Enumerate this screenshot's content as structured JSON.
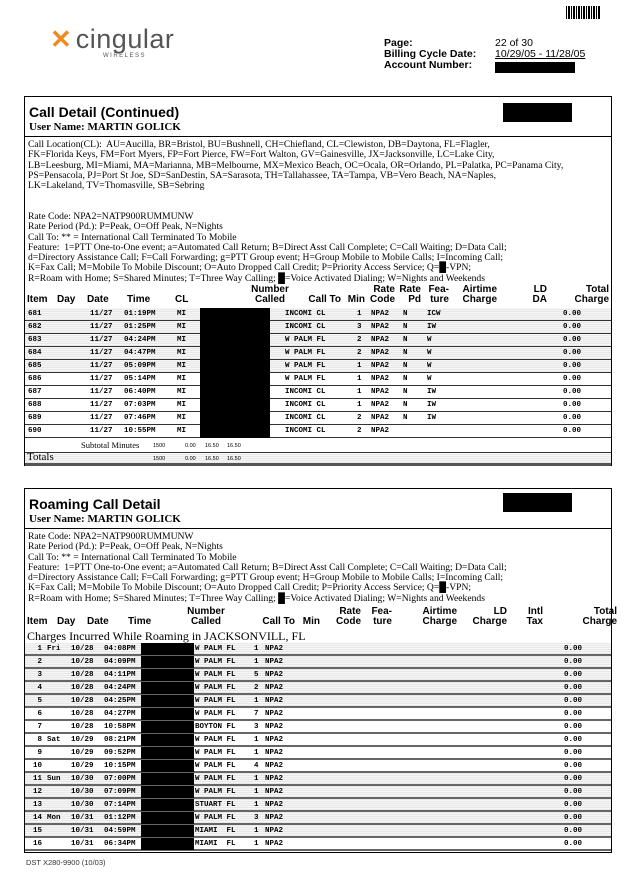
{
  "header": {
    "logo_text": "cingular",
    "logo_sub": "WIRELESS",
    "page_label": "Page:",
    "page_value": "22 of 30",
    "billing_label": "Billing Cycle Date:",
    "billing_value": "10/29/05 - 11/28/05",
    "account_label": "Account Number:"
  },
  "call_detail": {
    "title": "Call Detail (Continued)",
    "user": "User Name: MARTIN GOLICK",
    "legend_locations": "Call Location(CL):  AU=Aucilla, BR=Bristol, BU=Bushnell, CH=Chiefland, CL=Clewiston, DB=Daytona, FL=Flagler,\nFK=Florida Keys, FM=Fort Myers, FP=Fort Pierce, FW=Fort Walton, GV=Gainesville, JX=Jacksonville, LC=Lake City,\nLB=Leesburg, MI=Miami, MA=Marianna, MB=Melbourne, MX=Mexico Beach, OC=Ocala, OR=Orlando, PL=Palatka, PC=Panama City,\nPS=Pensacola, PJ=Port St Joe, SD=SanDestin, SA=Sarasota, TH=Tallahassee, TA=Tampa, VB=Vero Beach, NA=Naples,\nLK=Lakeland, TV=Thomasville, SB=Sebring",
    "legend_codes": "Rate Code: NPA2=NATP900RUMMUNW\nRate Period (Pd.): P=Peak, O=Off Peak, N=Nights\nCall To: ** = International Call Terminated To Mobile\nFeature:  1=PTT One-to-One event; a=Automated Call Return; B=Direct Asst Call Complete; C=Call Waiting; D=Data Call;\nd=Directory Assistance Call; F=Call Forwarding; g=PTT Group event; H=Group Mobile to Mobile Calls; I=Incoming Call;\nK=Fax Call; M=Mobile To Mobile Discount; O=Auto Dropped Call Credit; P=Priority Access Service; Q=█-VPN;\nR=Roam with Home; S=Shared Minutes; T=Three Way Calling; █=Voice Activated Dialing; W=Nights and Weekends",
    "columns": [
      "Item",
      "Day",
      "Date",
      "Time",
      "CL",
      "Number\nCalled",
      "Call To",
      "Min",
      "Rate\nCode",
      "Rate\nPd",
      "Fea-\nture",
      "Airtime\nCharge",
      "LD\nDA",
      "Total\nCharge"
    ],
    "rows": [
      {
        "item": "681",
        "date": "11/27",
        "time": "01:19PM",
        "cl": "MI",
        "call_to": "INCOMI CL",
        "min": "1",
        "rate_code": "NPA2",
        "pd": "N",
        "feature": "ICW",
        "total": "0.00"
      },
      {
        "item": "682",
        "date": "11/27",
        "time": "01:25PM",
        "cl": "MI",
        "call_to": "INCOMI CL",
        "min": "3",
        "rate_code": "NPA2",
        "pd": "N",
        "feature": "IW",
        "total": "0.00"
      },
      {
        "item": "683",
        "date": "11/27",
        "time": "04:24PM",
        "cl": "MI",
        "call_to": "W PALM FL",
        "min": "2",
        "rate_code": "NPA2",
        "pd": "N",
        "feature": "W",
        "total": "0.00"
      },
      {
        "item": "684",
        "date": "11/27",
        "time": "04:47PM",
        "cl": "MI",
        "call_to": "W PALM FL",
        "min": "2",
        "rate_code": "NPA2",
        "pd": "N",
        "feature": "W",
        "total": "0.00"
      },
      {
        "item": "685",
        "date": "11/27",
        "time": "05:09PM",
        "cl": "MI",
        "call_to": "W PALM FL",
        "min": "1",
        "rate_code": "NPA2",
        "pd": "N",
        "feature": "W",
        "total": "0.00"
      },
      {
        "item": "686",
        "date": "11/27",
        "time": "05:14PM",
        "cl": "MI",
        "call_to": "W PALM FL",
        "min": "1",
        "rate_code": "NPA2",
        "pd": "N",
        "feature": "W",
        "total": "0.00"
      },
      {
        "item": "687",
        "date": "11/27",
        "time": "06:40PM",
        "cl": "MI",
        "call_to": "INCOMI CL",
        "min": "1",
        "rate_code": "NPA2",
        "pd": "N",
        "feature": "IW",
        "total": "0.00"
      },
      {
        "item": "688",
        "date": "11/27",
        "time": "07:03PM",
        "cl": "MI",
        "call_to": "INCOMI CL",
        "min": "1",
        "rate_code": "NPA2",
        "pd": "N",
        "feature": "IW",
        "total": "0.00"
      },
      {
        "item": "689",
        "date": "11/27",
        "time": "07:46PM",
        "cl": "MI",
        "call_to": "INCOMI CL",
        "min": "2",
        "rate_code": "NPA2",
        "pd": "N",
        "feature": "IW",
        "total": "0.00"
      },
      {
        "item": "690",
        "date": "11/27",
        "time": "10:55PM",
        "cl": "MI",
        "call_to": "INCOMI CL",
        "min": "2",
        "rate_code": "NPA2",
        "pd": "",
        "feature": "",
        "total": "0.00"
      }
    ],
    "subtotal": {
      "label": "Subtotal Minutes",
      "minutes": "1500",
      "v1": "0.00",
      "v2": "16.50",
      "v3": "16.50"
    },
    "totals": {
      "label": "Totals",
      "minutes": "1500",
      "v1": "0.00",
      "v2": "16.50",
      "v3": "16.50"
    }
  },
  "roaming": {
    "title": "Roaming Call Detail",
    "user": "User Name: MARTIN GOLICK",
    "legend_codes": "Rate Code: NPA2=NATP900RUMMUNW\nRate Period (Pd.): P=Peak, O=Off Peak, N=Nights\nCall To: ** = International Call Terminated To Mobile\nFeature:  1=PTT One-to-One event; a=Automated Call Return; B=Direct Asst Call Complete; C=Call Waiting; D=Data Call;\nd=Directory Assistance Call; F=Call Forwarding; g=PTT Group event; H=Group Mobile to Mobile Calls; I=Incoming Call;\nK=Fax Call; M=Mobile To Mobile Discount; O=Auto Dropped Call Credit; P=Priority Access Service; Q=█-VPN;\nR=Roam with Home; S=Shared Minutes; T=Three Way Calling; █=Voice Activated Dialing; W=Nights and Weekends",
    "columns": [
      "Item",
      "Day",
      "Date",
      "Time",
      "Number\nCalled",
      "Call To",
      "Min",
      "Rate\nCode",
      "Fea-\nture",
      "Airtime\nCharge",
      "LD\nCharge",
      "Intl\nTax",
      "Total\nCharge"
    ],
    "section_label": "Charges Incurred While Roaming in JACKSONVILL, FL",
    "rows": [
      {
        "item": "1",
        "day": "Fri",
        "date": "10/28",
        "time": "04:08PM",
        "call_to": "W PALM FL",
        "min": "1",
        "rate_code": "NPA2",
        "total": "0.00"
      },
      {
        "item": "2",
        "day": "",
        "date": "10/28",
        "time": "04:09PM",
        "call_to": "W PALM FL",
        "min": "1",
        "rate_code": "NPA2",
        "total": "0.00"
      },
      {
        "item": "3",
        "day": "",
        "date": "10/28",
        "time": "04:11PM",
        "call_to": "W PALM FL",
        "min": "5",
        "rate_code": "NPA2",
        "total": "0.00"
      },
      {
        "item": "4",
        "day": "",
        "date": "10/28",
        "time": "04:24PM",
        "call_to": "W PALM FL",
        "min": "2",
        "rate_code": "NPA2",
        "total": "0.00"
      },
      {
        "item": "5",
        "day": "",
        "date": "10/28",
        "time": "04:25PM",
        "call_to": "W PALM FL",
        "min": "1",
        "rate_code": "NPA2",
        "total": "0.00"
      },
      {
        "item": "6",
        "day": "",
        "date": "10/28",
        "time": "04:27PM",
        "call_to": "W PALM FL",
        "min": "7",
        "rate_code": "NPA2",
        "total": "0.00"
      },
      {
        "item": "7",
        "day": "",
        "date": "10/28",
        "time": "10:58PM",
        "call_to": "BOYTON FL",
        "min": "3",
        "rate_code": "NPA2",
        "total": "0.00"
      },
      {
        "item": "8",
        "day": "Sat",
        "date": "10/29",
        "time": "08:21PM",
        "call_to": "W PALM FL",
        "min": "1",
        "rate_code": "NPA2",
        "total": "0.00"
      },
      {
        "item": "9",
        "day": "",
        "date": "10/29",
        "time": "09:52PM",
        "call_to": "W PALM FL",
        "min": "1",
        "rate_code": "NPA2",
        "total": "0.00"
      },
      {
        "item": "10",
        "day": "",
        "date": "10/29",
        "time": "10:15PM",
        "call_to": "W PALM FL",
        "min": "4",
        "rate_code": "NPA2",
        "total": "0.00"
      },
      {
        "item": "11",
        "day": "Sun",
        "date": "10/30",
        "time": "07:00PM",
        "call_to": "W PALM FL",
        "min": "1",
        "rate_code": "NPA2",
        "total": "0.00"
      },
      {
        "item": "12",
        "day": "",
        "date": "10/30",
        "time": "07:09PM",
        "call_to": "W PALM FL",
        "min": "1",
        "rate_code": "NPA2",
        "total": "0.00"
      },
      {
        "item": "13",
        "day": "",
        "date": "10/30",
        "time": "07:14PM",
        "call_to": "STUART FL",
        "min": "1",
        "rate_code": "NPA2",
        "total": "0.00"
      },
      {
        "item": "14",
        "day": "Mon",
        "date": "10/31",
        "time": "01:12PM",
        "call_to": "W PALM FL",
        "min": "3",
        "rate_code": "NPA2",
        "total": "0.00"
      },
      {
        "item": "15",
        "day": "",
        "date": "10/31",
        "time": "04:59PM",
        "call_to": "MIAMI  FL",
        "min": "1",
        "rate_code": "NPA2",
        "total": "0.00"
      },
      {
        "item": "16",
        "day": "",
        "date": "10/31",
        "time": "06:34PM",
        "call_to": "MIAMI  FL",
        "min": "1",
        "rate_code": "NPA2",
        "total": "0.00"
      }
    ]
  },
  "footer": "DST X280-9900 (10/03)",
  "colors": {
    "brand_orange": "#f08a1c",
    "redaction": "#000000"
  }
}
